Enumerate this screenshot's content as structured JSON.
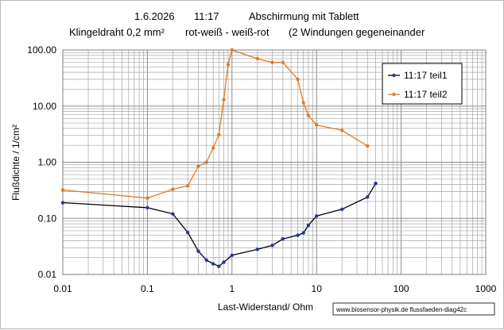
{
  "chart_data": {
    "type": "line",
    "title_line1": {
      "date": "1.6.2026",
      "time": "11:17",
      "text": "Abschirmung mit Tablett"
    },
    "title_line2": {
      "text1": "Klingeldraht 0,2 mm²",
      "text2": "rot-weiß - weiß-rot",
      "text3": "(2 Windungen gegeneinander"
    },
    "xlabel": "Last-Widerstand/ Ohm",
    "ylabel": "Flußdichte / 1/cm²",
    "x_scale": "log",
    "y_scale": "log",
    "xlim": [
      0.01,
      1000
    ],
    "ylim": [
      0.01,
      100
    ],
    "x_ticks": [
      0.01,
      0.1,
      1,
      10,
      100,
      1000
    ],
    "x_tick_labels": [
      "0.01",
      "0.1",
      "1",
      "10",
      "100",
      "1000"
    ],
    "y_ticks": [
      0.01,
      0.1,
      1,
      10,
      100
    ],
    "y_tick_labels": [
      "0.01",
      "0.10",
      "1.00",
      "10.00",
      "100.00"
    ],
    "grid": true,
    "legend_position": "top-right",
    "series": [
      {
        "name": "11:17 teil1",
        "color": "#000000",
        "marker_color": "#1f3a93",
        "x": [
          0.01,
          0.1,
          0.2,
          0.3,
          0.4,
          0.5,
          0.6,
          0.7,
          0.8,
          1,
          2,
          3,
          4,
          6,
          7,
          8,
          10,
          20,
          40,
          50
        ],
        "y": [
          0.19,
          0.155,
          0.12,
          0.056,
          0.026,
          0.018,
          0.0155,
          0.014,
          0.0165,
          0.022,
          0.028,
          0.033,
          0.043,
          0.05,
          0.055,
          0.075,
          0.11,
          0.145,
          0.24,
          0.42
        ]
      },
      {
        "name": "11:17 teil2",
        "color": "#e07a26",
        "marker_color": "#e07a26",
        "x": [
          0.01,
          0.1,
          0.2,
          0.3,
          0.4,
          0.5,
          0.6,
          0.7,
          0.8,
          0.9,
          1,
          2,
          3,
          4,
          6,
          7,
          8,
          10,
          20,
          40
        ],
        "y": [
          0.32,
          0.23,
          0.33,
          0.38,
          0.85,
          1.0,
          1.8,
          3.1,
          13,
          55,
          100,
          70,
          60,
          60,
          30,
          11.5,
          6.8,
          4.6,
          3.7,
          1.95
        ]
      }
    ],
    "watermark": "www.biosensor-physik.de  flussfaeden-diag42c"
  }
}
